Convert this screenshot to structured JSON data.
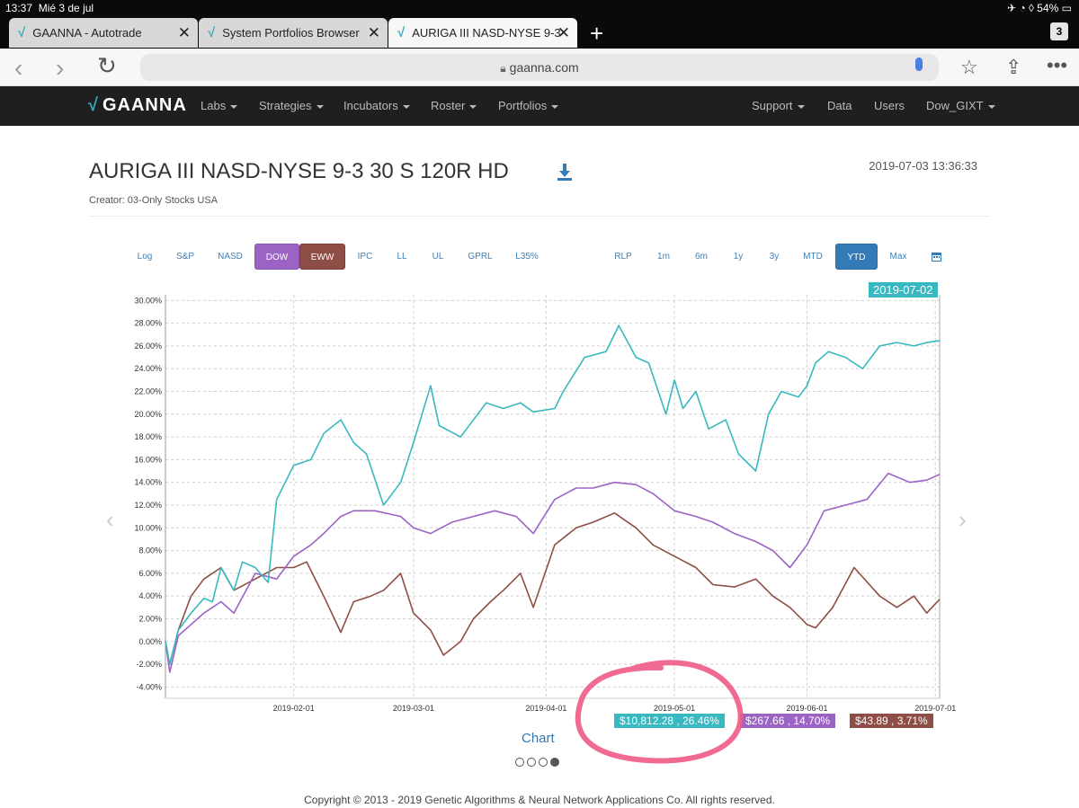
{
  "status": {
    "time": "13:37",
    "date": "Mié 3 de jul",
    "battery": "54%"
  },
  "tabs": [
    {
      "title": "GAANNA - Autotrade",
      "close": "✕"
    },
    {
      "title": "System Portfolios Browser",
      "close": "✕"
    },
    {
      "title": "AURIGA III NASD-NYSE 9-3",
      "close": "✕"
    }
  ],
  "tab_count": "3",
  "url": "gaanna.com",
  "nav": {
    "brand": "GAANNA",
    "left": [
      "Labs",
      "Strategies",
      "Incubators",
      "Roster",
      "Portfolios"
    ],
    "right": [
      "Support",
      "Data",
      "Users",
      "Dow_GIXT"
    ]
  },
  "page": {
    "title": "AURIGA III NASD-NYSE 9-3 30 S 120R HD",
    "timestamp": "2019-07-03 13:36:33",
    "creator": "Creator: 03-Only Stocks USA"
  },
  "toolbar_left": [
    "Log",
    "S&P",
    "NASD",
    "DOW",
    "EWW",
    "IPC",
    "LL",
    "UL",
    "GPRL",
    "L35%"
  ],
  "toolbar_right": [
    "RLP",
    "1m",
    "6m",
    "1y",
    "3y",
    "MTD",
    "YTD",
    "Max"
  ],
  "active_buttons": {
    "benchmarks": [
      "DOW",
      "EWW"
    ],
    "period": "YTD"
  },
  "colors": {
    "teal": "#38b8c0",
    "purple": "#9b63c4",
    "brown": "#8e4e45",
    "link": "#337ab7"
  },
  "chart_data": {
    "type": "line",
    "y_ticks": [
      "30.00%",
      "28.00%",
      "26.00%",
      "24.00%",
      "22.00%",
      "20.00%",
      "18.00%",
      "16.00%",
      "14.00%",
      "12.00%",
      "10.00%",
      "8.00%",
      "6.00%",
      "4.00%",
      "2.00%",
      "0.00%",
      "-2.00%",
      "-4.00%"
    ],
    "x_ticks": [
      "2019-02-01",
      "2019-03-01",
      "2019-04-01",
      "2019-05-01",
      "2019-06-01",
      "2019-07-01"
    ],
    "ylim": [
      -5,
      30.5
    ],
    "xlim": [
      "2019-01-02",
      "2019-07-02"
    ],
    "grid": true,
    "series": [
      {
        "color": "#38b8c0",
        "x": [
          "2019-01-02",
          "2019-01-03",
          "2019-01-05",
          "2019-01-08",
          "2019-01-11",
          "2019-01-13",
          "2019-01-15",
          "2019-01-18",
          "2019-01-20",
          "2019-01-23",
          "2019-01-26",
          "2019-01-28",
          "2019-02-01",
          "2019-02-05",
          "2019-02-08",
          "2019-02-12",
          "2019-02-15",
          "2019-02-18",
          "2019-02-22",
          "2019-02-26",
          "2019-03-01",
          "2019-03-05",
          "2019-03-07",
          "2019-03-12",
          "2019-03-18",
          "2019-03-22",
          "2019-03-26",
          "2019-03-29",
          "2019-04-03",
          "2019-04-05",
          "2019-04-10",
          "2019-04-15",
          "2019-04-18",
          "2019-04-22",
          "2019-04-25",
          "2019-04-29",
          "2019-05-01",
          "2019-05-03",
          "2019-05-06",
          "2019-05-09",
          "2019-05-13",
          "2019-05-16",
          "2019-05-20",
          "2019-05-23",
          "2019-05-26",
          "2019-05-30",
          "2019-06-01",
          "2019-06-03",
          "2019-06-06",
          "2019-06-10",
          "2019-06-14",
          "2019-06-18",
          "2019-06-22",
          "2019-06-26",
          "2019-06-29",
          "2019-07-02"
        ],
        "values": [
          0,
          -2.0,
          1.0,
          2.5,
          3.8,
          3.5,
          6.5,
          4.5,
          7.0,
          6.5,
          5.2,
          12.5,
          15.5,
          16.0,
          18.3,
          19.5,
          17.5,
          16.5,
          12.0,
          14.0,
          17.5,
          22.5,
          19.0,
          18.0,
          21.0,
          20.5,
          21.0,
          20.2,
          20.5,
          22.0,
          25.0,
          25.5,
          27.8,
          25.0,
          24.5,
          20.0,
          23.0,
          20.5,
          22.0,
          18.7,
          19.5,
          16.5,
          15.0,
          20.0,
          22.0,
          21.5,
          22.5,
          24.5,
          25.5,
          25.0,
          24.0,
          26.0,
          26.3,
          26.0,
          26.3,
          26.46
        ]
      },
      {
        "color": "#9b63c4",
        "x": [
          "2019-01-02",
          "2019-01-03",
          "2019-01-05",
          "2019-01-08",
          "2019-01-11",
          "2019-01-15",
          "2019-01-18",
          "2019-01-23",
          "2019-01-28",
          "2019-02-01",
          "2019-02-05",
          "2019-02-08",
          "2019-02-12",
          "2019-02-15",
          "2019-02-20",
          "2019-02-26",
          "2019-03-01",
          "2019-03-05",
          "2019-03-10",
          "2019-03-15",
          "2019-03-20",
          "2019-03-25",
          "2019-03-29",
          "2019-04-03",
          "2019-04-08",
          "2019-04-12",
          "2019-04-17",
          "2019-04-22",
          "2019-04-26",
          "2019-05-01",
          "2019-05-06",
          "2019-05-10",
          "2019-05-15",
          "2019-05-20",
          "2019-05-24",
          "2019-05-28",
          "2019-06-01",
          "2019-06-05",
          "2019-06-10",
          "2019-06-15",
          "2019-06-20",
          "2019-06-25",
          "2019-06-29",
          "2019-07-02"
        ],
        "values": [
          0,
          -2.7,
          0.5,
          1.5,
          2.5,
          3.5,
          2.5,
          6.0,
          5.5,
          7.5,
          8.5,
          9.5,
          11.0,
          11.5,
          11.5,
          11.0,
          10.0,
          9.5,
          10.5,
          11.0,
          11.5,
          11.0,
          9.5,
          12.5,
          13.5,
          13.5,
          14.0,
          13.8,
          13.0,
          11.5,
          11.0,
          10.5,
          9.5,
          8.8,
          8.0,
          6.5,
          8.5,
          11.5,
          12.0,
          12.5,
          14.8,
          14.0,
          14.2,
          14.7
        ]
      },
      {
        "color": "#8e4e45",
        "x": [
          "2019-01-02",
          "2019-01-03",
          "2019-01-05",
          "2019-01-08",
          "2019-01-11",
          "2019-01-15",
          "2019-01-18",
          "2019-01-23",
          "2019-01-28",
          "2019-02-01",
          "2019-02-04",
          "2019-02-08",
          "2019-02-12",
          "2019-02-15",
          "2019-02-19",
          "2019-02-22",
          "2019-02-26",
          "2019-03-01",
          "2019-03-05",
          "2019-03-08",
          "2019-03-12",
          "2019-03-15",
          "2019-03-19",
          "2019-03-22",
          "2019-03-26",
          "2019-03-29",
          "2019-04-03",
          "2019-04-08",
          "2019-04-12",
          "2019-04-17",
          "2019-04-22",
          "2019-04-26",
          "2019-05-01",
          "2019-05-06",
          "2019-05-10",
          "2019-05-15",
          "2019-05-20",
          "2019-05-24",
          "2019-05-28",
          "2019-06-01",
          "2019-06-03",
          "2019-06-07",
          "2019-06-12",
          "2019-06-18",
          "2019-06-22",
          "2019-06-26",
          "2019-06-29",
          "2019-07-02"
        ],
        "values": [
          0,
          -2.0,
          1.0,
          4.0,
          5.5,
          6.5,
          4.5,
          5.5,
          6.5,
          6.5,
          7.0,
          4.0,
          0.8,
          3.5,
          4.0,
          4.5,
          6.0,
          2.5,
          1.0,
          -1.2,
          0.0,
          2.0,
          3.5,
          4.5,
          6.0,
          3.0,
          8.5,
          10.0,
          10.5,
          11.3,
          10.0,
          8.5,
          7.5,
          6.5,
          5.0,
          4.8,
          5.5,
          4.0,
          3.0,
          1.5,
          1.2,
          3.0,
          6.5,
          4.0,
          3.0,
          4.0,
          2.5,
          3.71
        ]
      }
    ]
  },
  "highlight_date": "2019-07-02",
  "badges": {
    "teal": "$10,812.28 , 26.46%",
    "purple": "$267.66 , 14.70%",
    "brown": "$43.89 , 3.71%"
  },
  "chart_link": "Chart",
  "footer": "Copyright © 2013 - 2019 Genetic Algorithms & Neural Network Applications Co. All rights reserved."
}
